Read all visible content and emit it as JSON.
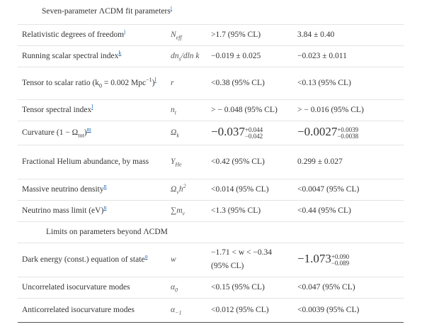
{
  "sections": [
    {
      "title": [
        {
          "text": "Seven-parameter ΛCDM fit parameters"
        },
        {
          "note": "j"
        }
      ],
      "rows": [
        {
          "name": [
            {
              "text": "Relativistic degrees of freedom"
            },
            {
              "note": "j"
            }
          ],
          "symbol": [
            {
              "text": "N"
            },
            {
              "sub": "eff"
            }
          ],
          "wmap": [
            {
              "text": ">1.7 (95% CL)"
            }
          ],
          "combined": [
            {
              "text": "3.84 ± 0.40"
            }
          ]
        },
        {
          "name": [
            {
              "text": "Running scalar spectral index"
            },
            {
              "note": "k"
            }
          ],
          "symbol": [
            {
              "text": "dn"
            },
            {
              "sub": "s"
            },
            {
              "text": "/dln k"
            }
          ],
          "wmap": [
            {
              "text": "−0.019 ± 0.025"
            }
          ],
          "combined": [
            {
              "text": "−0.023 ± 0.011"
            }
          ]
        },
        {
          "name": [
            {
              "text": "Tensor to scalar ratio (k"
            },
            {
              "sub": "0"
            },
            {
              "text": " = 0.002 Mpc"
            },
            {
              "sup": "−1"
            },
            {
              "text": ")"
            },
            {
              "note": "l"
            }
          ],
          "symbol": [
            {
              "text": "r"
            }
          ],
          "wmap": [
            {
              "text": "<0.38 (95% CL)"
            }
          ],
          "combined": [
            {
              "text": "<0.13 (95% CL)"
            }
          ]
        },
        {
          "name": [
            {
              "text": "Tensor spectral index"
            },
            {
              "note": "l"
            }
          ],
          "symbol": [
            {
              "text": "n"
            },
            {
              "sub": "t"
            }
          ],
          "wmap": [
            {
              "text": "> − 0.048 (95% CL)"
            }
          ],
          "combined": [
            {
              "text": "> − 0.016 (95% CL)"
            }
          ]
        },
        {
          "name": [
            {
              "text": "Curvature (1 − Ω"
            },
            {
              "sub": "tot"
            },
            {
              "text": ")"
            },
            {
              "note": "m"
            }
          ],
          "symbol": [
            {
              "text": "Ω"
            },
            {
              "sub": "k"
            }
          ],
          "wmap": [
            {
              "text": "−0.037"
            },
            {
              "sup": "+0.044",
              "sub": "−0.042"
            }
          ],
          "combined": [
            {
              "text": "−0.0027"
            },
            {
              "sup": "+0.0039",
              "sub": "−0.0038"
            }
          ]
        },
        {
          "name": [
            {
              "text": "Fractional Helium abundance, by mass"
            }
          ],
          "symbol": [
            {
              "text": "Y"
            },
            {
              "sub": "He"
            }
          ],
          "wmap": [
            {
              "text": "<0.42 (95% CL)"
            }
          ],
          "combined": [
            {
              "text": "0.299 ± 0.027"
            }
          ]
        },
        {
          "name": [
            {
              "text": "Massive neutrino density"
            },
            {
              "note": "n"
            }
          ],
          "symbol": [
            {
              "text": "Ω"
            },
            {
              "sub": "ν"
            },
            {
              "text": "h"
            },
            {
              "sup": "2"
            }
          ],
          "wmap": [
            {
              "text": "<0.014 (95% CL)"
            }
          ],
          "combined": [
            {
              "text": "<0.0047 (95% CL)"
            }
          ]
        },
        {
          "name": [
            {
              "text": "Neutrino mass limit (eV)"
            },
            {
              "note": "n"
            }
          ],
          "symbol": [
            {
              "text": "∑m"
            },
            {
              "sub": "ν"
            }
          ],
          "wmap": [
            {
              "text": "<1.3 (95% CL)"
            }
          ],
          "combined": [
            {
              "text": "<0.44 (95% CL)"
            }
          ]
        }
      ]
    },
    {
      "title": [
        {
          "text": "Limits on parameters beyond ΛCDM"
        }
      ],
      "rows": [
        {
          "name": [
            {
              "text": "Dark energy (const.) equation of state"
            },
            {
              "note": "o"
            }
          ],
          "symbol": [
            {
              "text": "w"
            }
          ],
          "wmap": [
            {
              "text": "−1.71 < w < −0.34 (95% CL)"
            }
          ],
          "combined": [
            {
              "text": "−1.073"
            },
            {
              "sup": "+0.090",
              "sub": "−0.089"
            }
          ]
        },
        {
          "name": [
            {
              "text": "Uncorrelated isocurvature modes"
            }
          ],
          "symbol": [
            {
              "text": "α"
            },
            {
              "sub": "0"
            }
          ],
          "wmap": [
            {
              "text": "<0.15 (95% CL)"
            }
          ],
          "combined": [
            {
              "text": "<0.047 (95% CL)"
            }
          ]
        },
        {
          "name": [
            {
              "text": "Anticorrelated isocurvature modes"
            }
          ],
          "symbol": [
            {
              "text": "α"
            },
            {
              "sub": "−1"
            }
          ],
          "wmap": [
            {
              "text": "<0.012 (95% CL)"
            }
          ],
          "combined": [
            {
              "text": "<0.0039 (95% CL)"
            }
          ]
        }
      ]
    }
  ]
}
